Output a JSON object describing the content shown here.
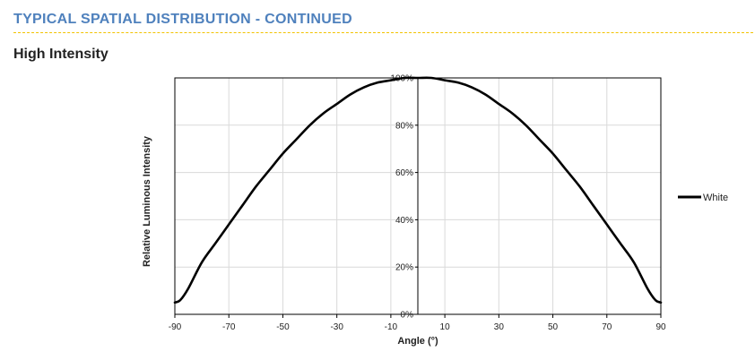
{
  "header": {
    "title": "TYPICAL SPATIAL DISTRIBUTION - CONTINUED",
    "subtitle": "High Intensity"
  },
  "colors": {
    "title": "#4f81bd",
    "divider": "#f2c200",
    "grid": "#d9d9d9",
    "series": "#000000"
  },
  "chart_data": {
    "type": "line",
    "xlabel": "Angle (°)",
    "ylabel": "Relative Luminous Intensity",
    "xlim": [
      -90,
      90
    ],
    "ylim": [
      0,
      100
    ],
    "x_ticks": [
      -90,
      -70,
      -50,
      -30,
      -10,
      10,
      30,
      50,
      70,
      90
    ],
    "y_ticks": [
      0,
      20,
      40,
      60,
      80,
      100
    ],
    "y_tick_labels": [
      "0%",
      "20%",
      "40%",
      "60%",
      "80%",
      "100%"
    ],
    "grid": true,
    "legend": "right",
    "series": [
      {
        "name": "White",
        "x": [
          -90,
          -88,
          -85,
          -80,
          -75,
          -70,
          -65,
          -60,
          -55,
          -50,
          -45,
          -40,
          -35,
          -30,
          -25,
          -20,
          -15,
          -10,
          -5,
          0,
          5,
          10,
          15,
          20,
          25,
          30,
          35,
          40,
          45,
          50,
          55,
          60,
          65,
          70,
          75,
          80,
          85,
          88,
          90
        ],
        "y": [
          5,
          6,
          11,
          22,
          30,
          38,
          46,
          54,
          61,
          68,
          74,
          80,
          85,
          89,
          93,
          96,
          98,
          99,
          100,
          100,
          100,
          99,
          98,
          96,
          93,
          89,
          85,
          80,
          74,
          68,
          61,
          54,
          46,
          38,
          30,
          22,
          11,
          6,
          5
        ]
      }
    ]
  }
}
